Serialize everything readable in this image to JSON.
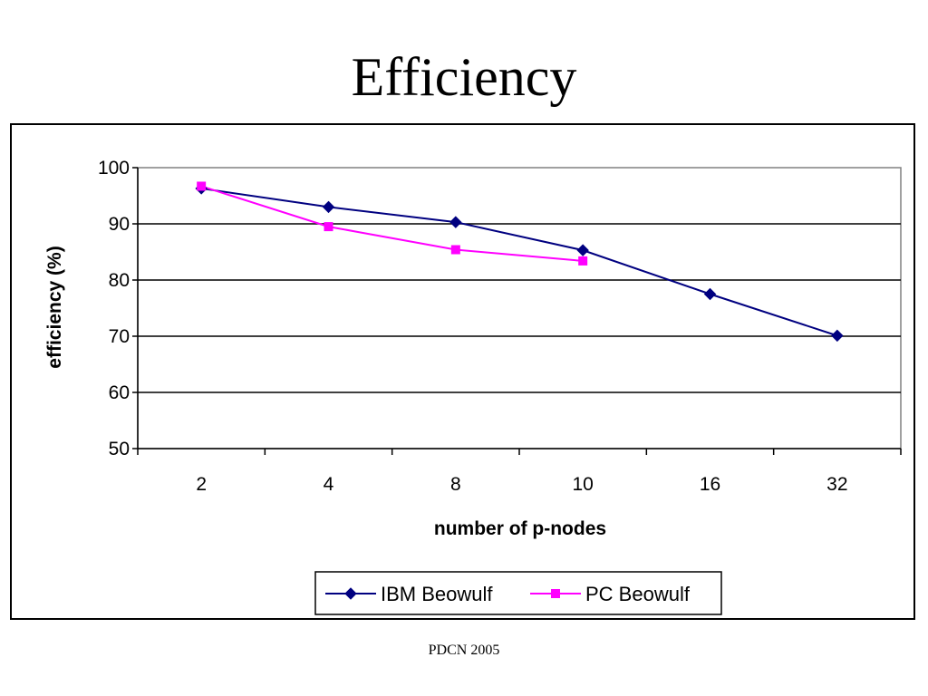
{
  "slide": {
    "title": "Efficiency",
    "footer": "PDCN 2005"
  },
  "chart_data": {
    "type": "line",
    "title": "",
    "xlabel": "number of p-nodes",
    "ylabel": "efficiency (%)",
    "categories": [
      "2",
      "4",
      "8",
      "10",
      "16",
      "32"
    ],
    "ylim": [
      50,
      100
    ],
    "yticks": [
      50,
      60,
      70,
      80,
      90,
      100
    ],
    "grid": true,
    "legend_position": "bottom",
    "series": [
      {
        "name": "IBM Beowulf",
        "values": [
          96.3,
          93.0,
          90.3,
          85.3,
          77.5,
          70.1
        ],
        "color": "#000080",
        "marker": "diamond"
      },
      {
        "name": "PC Beowulf",
        "values": [
          96.7,
          89.5,
          85.4,
          83.4,
          null,
          null
        ],
        "color": "#FF00FF",
        "marker": "square"
      }
    ]
  }
}
